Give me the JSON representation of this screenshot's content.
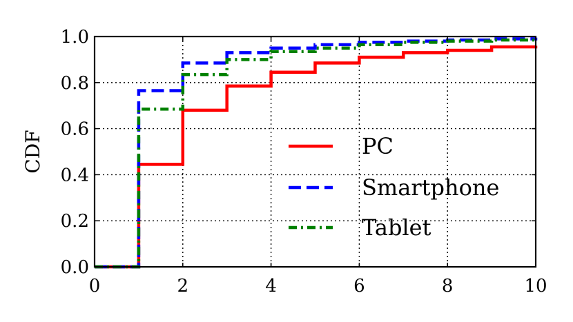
{
  "chart_data": {
    "type": "line",
    "step": true,
    "xlabel": "",
    "ylabel": "CDF",
    "xlim": [
      0,
      10
    ],
    "ylim": [
      0,
      1
    ],
    "xticks": [
      "0",
      "2",
      "4",
      "6",
      "8",
      "10"
    ],
    "yticks": [
      "0.0",
      "0.2",
      "0.4",
      "0.6",
      "0.8",
      "1.0"
    ],
    "grid": true,
    "legend_position": "center-right",
    "series": [
      {
        "name": "PC",
        "color": "#ff0000",
        "style": "solid",
        "x": [
          0,
          1,
          2,
          3,
          4,
          5,
          6,
          7,
          8,
          9,
          10
        ],
        "y": [
          0.0,
          0.445,
          0.68,
          0.785,
          0.845,
          0.885,
          0.91,
          0.93,
          0.94,
          0.955,
          0.96
        ]
      },
      {
        "name": "Smartphone",
        "color": "#0000ff",
        "style": "dashed",
        "x": [
          0,
          1,
          2,
          3,
          4,
          5,
          6,
          7,
          8,
          9,
          10
        ],
        "y": [
          0.0,
          0.765,
          0.885,
          0.93,
          0.95,
          0.965,
          0.975,
          0.98,
          0.985,
          0.99,
          0.995
        ]
      },
      {
        "name": "Tablet",
        "color": "#008000",
        "style": "dashdot",
        "x": [
          0,
          1,
          2,
          3,
          4,
          5,
          6,
          7,
          8,
          9,
          10
        ],
        "y": [
          0.0,
          0.685,
          0.835,
          0.9,
          0.935,
          0.95,
          0.965,
          0.975,
          0.98,
          0.985,
          0.99
        ]
      }
    ]
  }
}
